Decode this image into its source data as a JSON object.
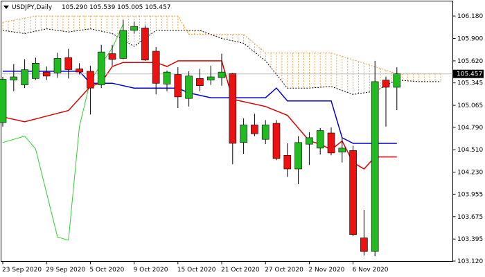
{
  "chart_data": {
    "type": "candlestick",
    "symbol_header": "USDJPY,Daily",
    "ohlc_header": "105.290 105.539 105.005 105.457",
    "ylim": [
      103.12,
      106.25
    ],
    "y_ticks": [
      "106.180",
      "105.900",
      "105.620",
      "105.345",
      "105.065",
      "104.790",
      "104.510",
      "104.230",
      "103.955",
      "103.675",
      "103.395",
      "103.120"
    ],
    "x_tick_labels": [
      "23 Sep 2020",
      "29 Sep 2020",
      "5 Oct 2020",
      "9 Oct 2020",
      "15 Oct 2020",
      "21 Oct 2020",
      "27 Oct 2020",
      "2 Nov 2020",
      "6 Nov 2020"
    ],
    "x_tick_index": [
      0,
      4,
      8,
      12,
      16,
      20,
      24,
      28,
      32
    ],
    "current_price": 105.457,
    "current_price_label": "105.457",
    "colors": {
      "bull": "#22bb22",
      "bear": "#ee1111",
      "tenkan": "#dd0000",
      "kijun": "#0000cc",
      "chikou": "#33cc33",
      "cloud": "#e8a040",
      "span_b": "#000000",
      "price_line": "#bbbbbb",
      "price_tag": "#000000"
    },
    "candles": [
      {
        "o": 104.85,
        "h": 105.42,
        "l": 104.8,
        "c": 105.39
      },
      {
        "o": 105.38,
        "h": 105.58,
        "l": 105.24,
        "c": 105.42
      },
      {
        "o": 105.32,
        "h": 105.64,
        "l": 105.28,
        "c": 105.51
      },
      {
        "o": 105.4,
        "h": 105.66,
        "l": 105.38,
        "c": 105.59
      },
      {
        "o": 105.48,
        "h": 105.55,
        "l": 105.38,
        "c": 105.43
      },
      {
        "o": 105.47,
        "h": 105.72,
        "l": 105.41,
        "c": 105.65
      },
      {
        "o": 105.66,
        "h": 105.77,
        "l": 105.4,
        "c": 105.51
      },
      {
        "o": 105.52,
        "h": 105.59,
        "l": 105.45,
        "c": 105.48
      },
      {
        "o": 105.49,
        "h": 105.56,
        "l": 104.95,
        "c": 105.28
      },
      {
        "o": 105.32,
        "h": 105.82,
        "l": 105.28,
        "c": 105.73
      },
      {
        "o": 105.71,
        "h": 105.82,
        "l": 105.56,
        "c": 105.64
      },
      {
        "o": 105.65,
        "h": 106.13,
        "l": 105.64,
        "c": 106.0
      },
      {
        "o": 106.0,
        "h": 106.11,
        "l": 105.96,
        "c": 106.05
      },
      {
        "o": 106.03,
        "h": 106.06,
        "l": 105.62,
        "c": 105.63
      },
      {
        "o": 105.74,
        "h": 105.79,
        "l": 105.2,
        "c": 105.34
      },
      {
        "o": 105.33,
        "h": 105.5,
        "l": 105.24,
        "c": 105.48
      },
      {
        "o": 105.45,
        "h": 105.54,
        "l": 105.03,
        "c": 105.17
      },
      {
        "o": 105.15,
        "h": 105.49,
        "l": 105.05,
        "c": 105.43
      },
      {
        "o": 105.4,
        "h": 105.52,
        "l": 105.24,
        "c": 105.31
      },
      {
        "o": 105.38,
        "h": 105.56,
        "l": 105.32,
        "c": 105.42
      },
      {
        "o": 105.41,
        "h": 105.71,
        "l": 105.31,
        "c": 105.48
      },
      {
        "o": 105.46,
        "h": 105.47,
        "l": 104.33,
        "c": 104.59
      },
      {
        "o": 104.6,
        "h": 104.9,
        "l": 104.46,
        "c": 104.82
      },
      {
        "o": 104.82,
        "h": 104.96,
        "l": 104.68,
        "c": 104.71
      },
      {
        "o": 104.64,
        "h": 104.88,
        "l": 104.58,
        "c": 104.82
      },
      {
        "o": 104.84,
        "h": 104.88,
        "l": 104.38,
        "c": 104.4
      },
      {
        "o": 104.44,
        "h": 104.59,
        "l": 104.17,
        "c": 104.27
      },
      {
        "o": 104.27,
        "h": 104.68,
        "l": 104.08,
        "c": 104.6
      },
      {
        "o": 104.58,
        "h": 104.73,
        "l": 104.32,
        "c": 104.66
      },
      {
        "o": 104.53,
        "h": 104.78,
        "l": 104.45,
        "c": 104.75
      },
      {
        "o": 104.72,
        "h": 104.79,
        "l": 104.44,
        "c": 104.47
      },
      {
        "o": 104.48,
        "h": 104.66,
        "l": 104.35,
        "c": 104.53
      },
      {
        "o": 104.5,
        "h": 104.56,
        "l": 103.43,
        "c": 103.45
      },
      {
        "o": 103.41,
        "h": 103.76,
        "l": 103.19,
        "c": 103.24
      },
      {
        "o": 103.24,
        "h": 105.62,
        "l": 103.18,
        "c": 105.36
      },
      {
        "o": 105.38,
        "h": 105.42,
        "l": 104.8,
        "c": 105.29
      },
      {
        "o": 105.29,
        "h": 105.539,
        "l": 105.005,
        "c": 105.457
      }
    ],
    "tenkan": [
      [
        0,
        104.92
      ],
      [
        2,
        104.86
      ],
      [
        4,
        104.93
      ],
      [
        6,
        105.0
      ],
      [
        8,
        105.3
      ],
      [
        9,
        105.35
      ],
      [
        10,
        105.55
      ],
      [
        11,
        105.6
      ],
      [
        14,
        105.6
      ],
      [
        15,
        105.55
      ],
      [
        16,
        105.62
      ],
      [
        18,
        105.62
      ],
      [
        20,
        105.62
      ],
      [
        21,
        105.14
      ],
      [
        24,
        105.05
      ],
      [
        26,
        104.94
      ],
      [
        28,
        104.62
      ],
      [
        29,
        104.58
      ],
      [
        30,
        104.51
      ],
      [
        31,
        104.62
      ],
      [
        32,
        104.35
      ],
      [
        33,
        104.27
      ],
      [
        34,
        104.42
      ],
      [
        36,
        104.42
      ]
    ],
    "kijun": [
      [
        0,
        105.49
      ],
      [
        7,
        105.49
      ],
      [
        8,
        105.34
      ],
      [
        10,
        105.34
      ],
      [
        12,
        105.28
      ],
      [
        16,
        105.28
      ],
      [
        17,
        105.22
      ],
      [
        19,
        105.16
      ],
      [
        24,
        105.16
      ],
      [
        25,
        105.28
      ],
      [
        26,
        105.12
      ],
      [
        30,
        105.12
      ],
      [
        31,
        104.66
      ],
      [
        32,
        104.59
      ],
      [
        36,
        104.59
      ]
    ],
    "chikou": [
      [
        0,
        104.6
      ],
      [
        2,
        104.68
      ],
      [
        3,
        104.52
      ],
      [
        5,
        103.42
      ],
      [
        6,
        103.38
      ],
      [
        7,
        104.8
      ],
      [
        8,
        105.37
      ],
      [
        9,
        105.58
      ],
      [
        10,
        105.78
      ],
      [
        11,
        106.08
      ]
    ],
    "span_a": [
      [
        0,
        106.1
      ],
      [
        3,
        106.18
      ],
      [
        8,
        106.18
      ],
      [
        16,
        106.18
      ],
      [
        17,
        105.95
      ],
      [
        22,
        105.95
      ],
      [
        24,
        105.72
      ],
      [
        30,
        105.72
      ],
      [
        36,
        105.46
      ],
      [
        40,
        105.46
      ]
    ],
    "span_b": [
      [
        0,
        106.0
      ],
      [
        2,
        105.96
      ],
      [
        4,
        106.02
      ],
      [
        6,
        105.98
      ],
      [
        8,
        106.02
      ],
      [
        10,
        105.96
      ],
      [
        12,
        105.8
      ],
      [
        14,
        106.0
      ],
      [
        16,
        106.0
      ],
      [
        18,
        106.0
      ],
      [
        20,
        105.9
      ],
      [
        22,
        105.84
      ],
      [
        24,
        105.62
      ],
      [
        26,
        105.28
      ],
      [
        28,
        105.28
      ],
      [
        30,
        105.3
      ],
      [
        32,
        105.2
      ],
      [
        34,
        105.24
      ],
      [
        36,
        105.38
      ],
      [
        38,
        105.36
      ],
      [
        40,
        105.36
      ]
    ]
  }
}
